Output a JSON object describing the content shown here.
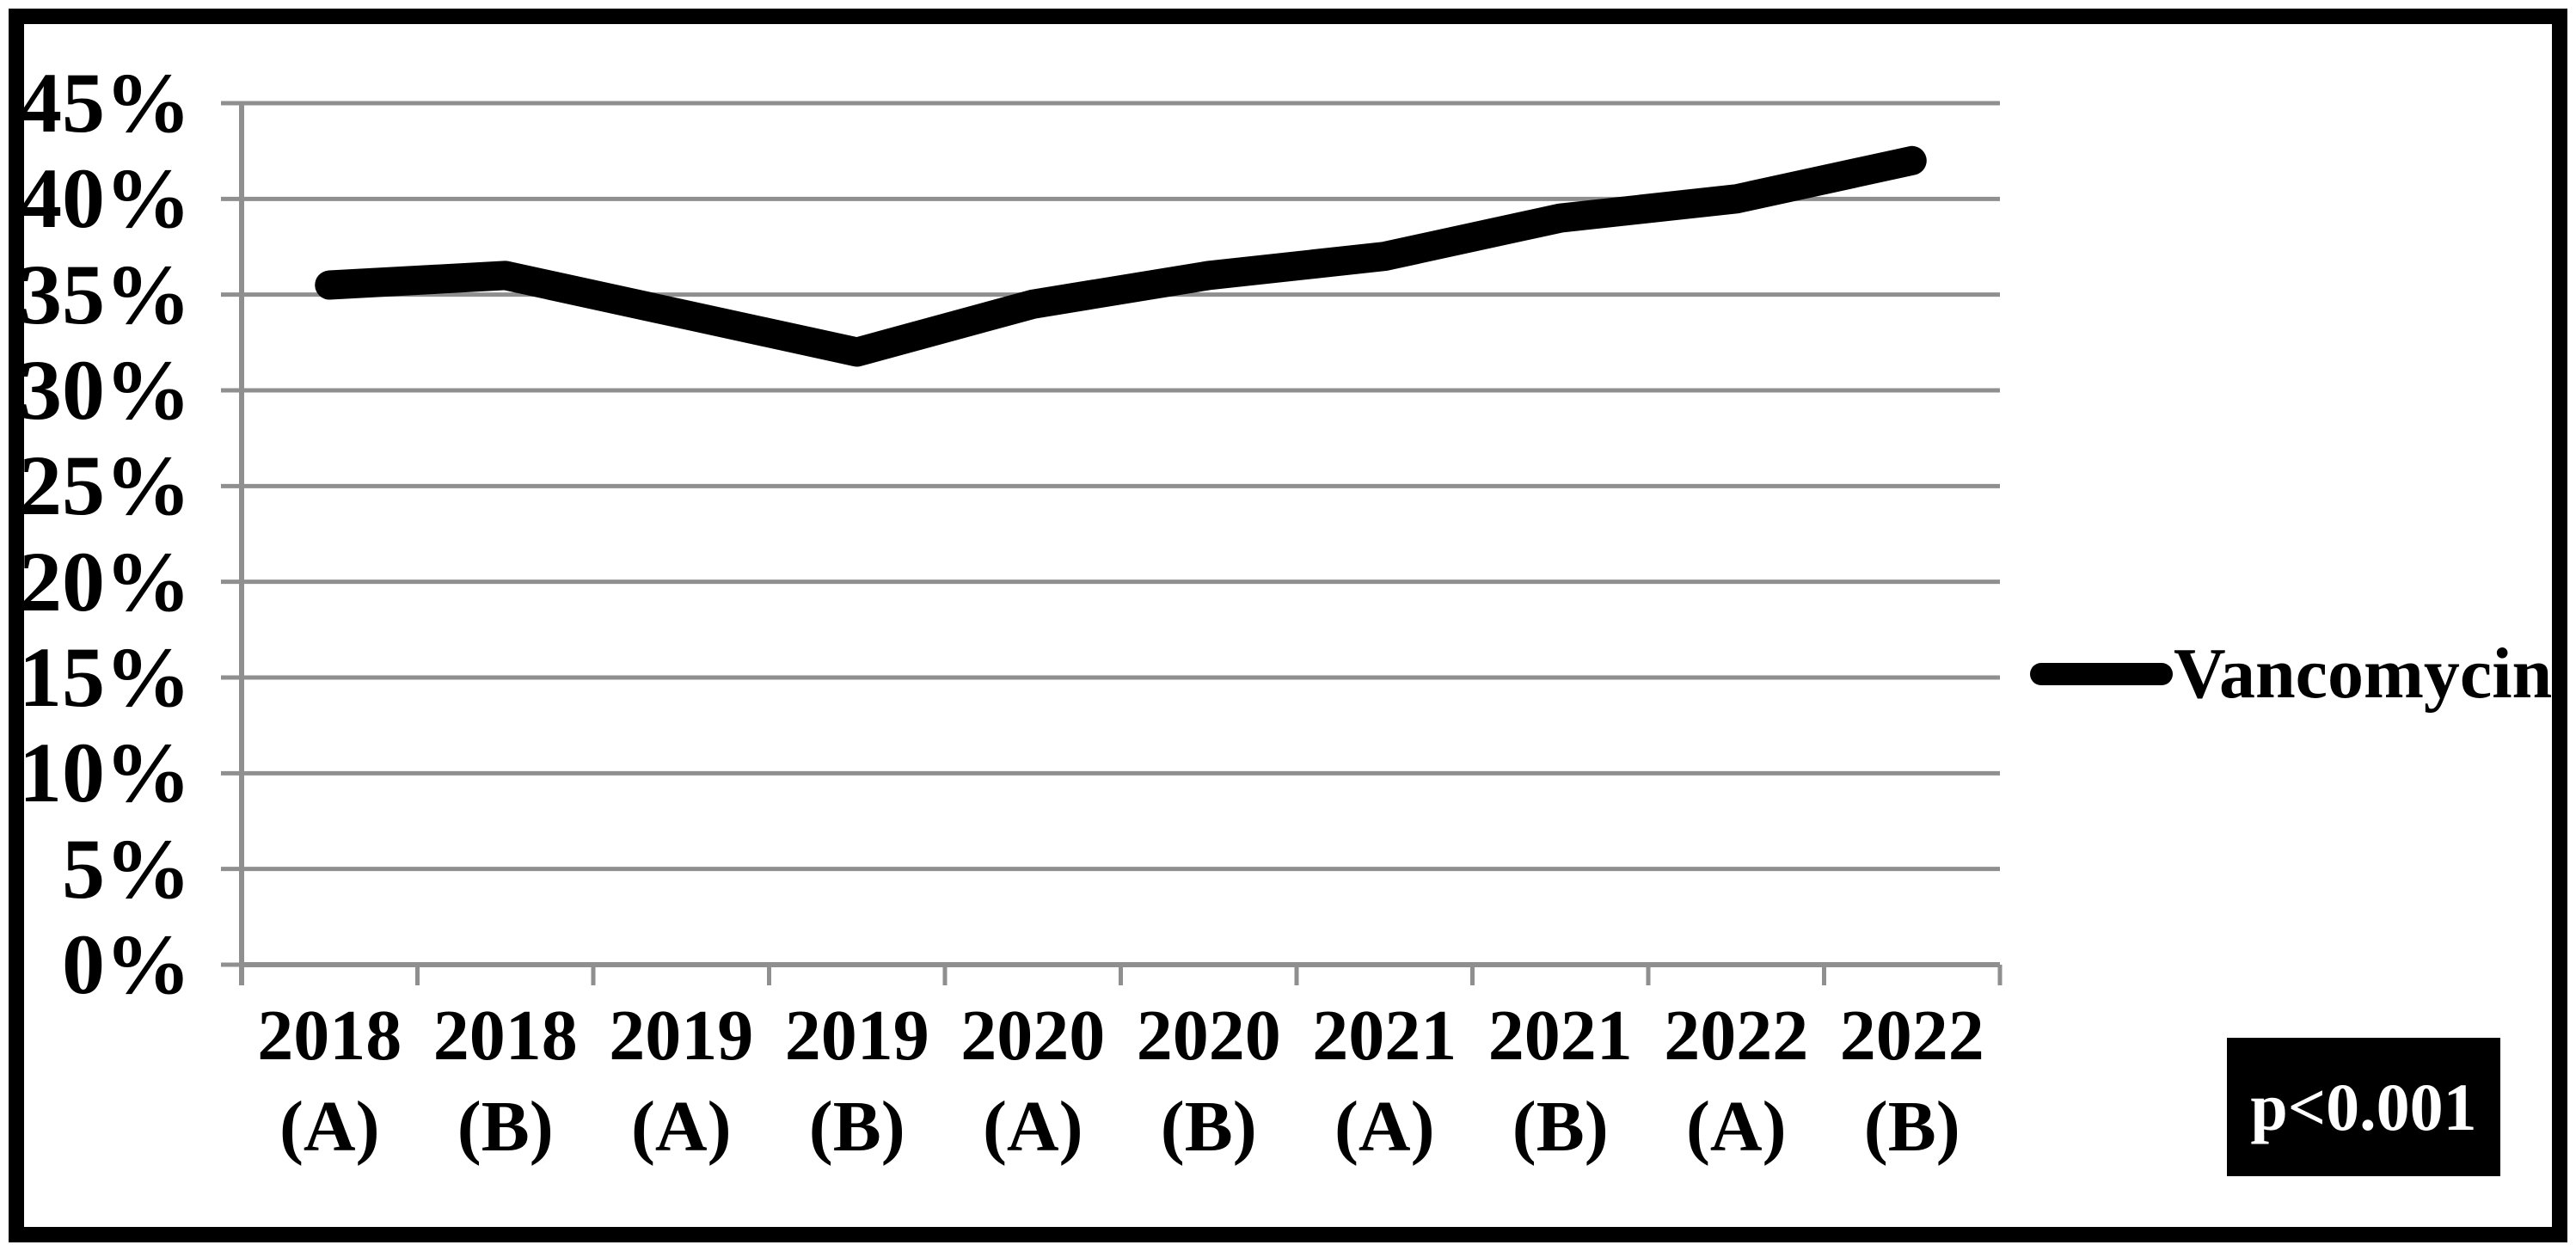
{
  "chart_data": {
    "type": "line",
    "title": "",
    "categories": [
      [
        "2018",
        "(A)"
      ],
      [
        "2018",
        "(B)"
      ],
      [
        "2019",
        "(A)"
      ],
      [
        "2019",
        "(B)"
      ],
      [
        "2020",
        "(A)"
      ],
      [
        "2020",
        "(B)"
      ],
      [
        "2021",
        "(A)"
      ],
      [
        "2021",
        "(B)"
      ],
      [
        "2022",
        "(A)"
      ],
      [
        "2022",
        "(B)"
      ]
    ],
    "series": [
      {
        "name": "Vancomycin",
        "values": [
          35.5,
          36,
          34,
          32,
          34.5,
          36,
          37,
          39,
          40,
          42
        ],
        "color": "#000000"
      }
    ],
    "ylim": [
      0,
      45
    ],
    "ytick_step": 5,
    "ytick_suffix": "%",
    "ytick_labels": [
      "0%",
      "5%",
      "10%",
      "15%",
      "20%",
      "25%",
      "30%",
      "35%",
      "40%",
      "45%"
    ],
    "grid": "horizontal",
    "gridline_color": "#8f8f8f",
    "axis_color": "#8f8f8f",
    "legend": {
      "position": "right-middle",
      "entries": [
        "Vancomycin"
      ]
    },
    "annotation": {
      "text": "p<0.001",
      "background": "#000000",
      "color": "#ffffff",
      "position": "bottom-right"
    }
  }
}
